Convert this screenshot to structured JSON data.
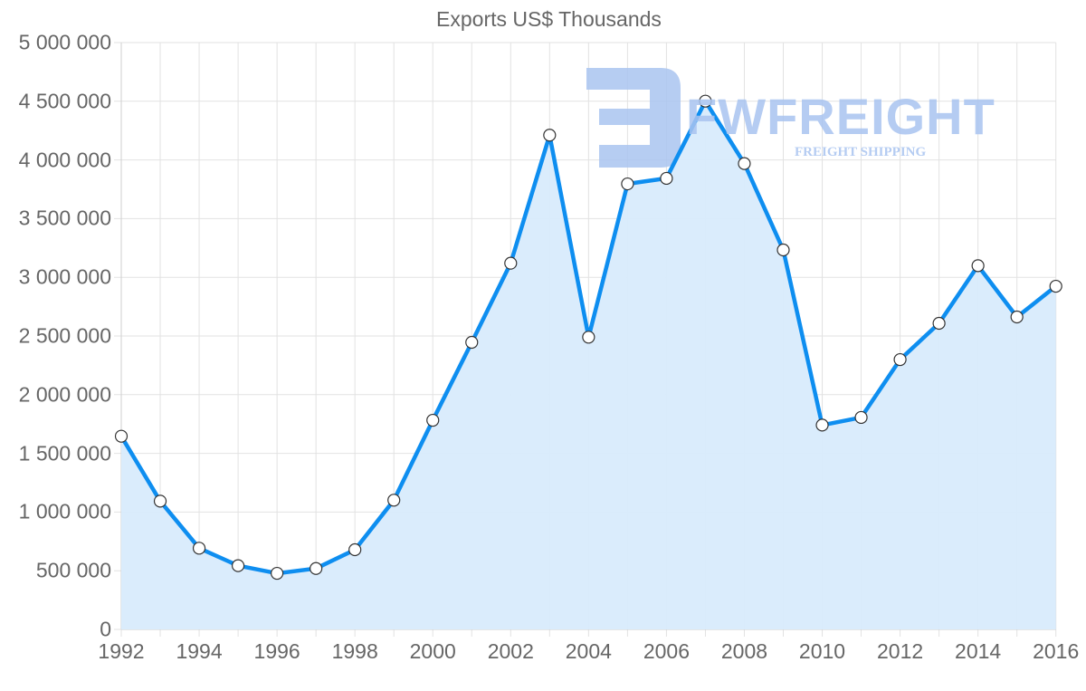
{
  "chart_data": {
    "type": "line",
    "title": "Exports US$ Thousands",
    "xlabel": "",
    "ylabel": "",
    "ylim": [
      0,
      5000000
    ],
    "grid": true,
    "legend": "none",
    "fill": true,
    "x": [
      1992,
      1993,
      1994,
      1995,
      1996,
      1997,
      1998,
      1999,
      2000,
      2001,
      2002,
      2003,
      2004,
      2005,
      2006,
      2007,
      2008,
      2009,
      2010,
      2011,
      2012,
      2013,
      2014,
      2015,
      2016
    ],
    "series": [
      {
        "name": "Exports US$ Thousands",
        "values": [
          1646000,
          1093000,
          692000,
          543000,
          478000,
          519000,
          679000,
          1101000,
          1782000,
          2446000,
          3120000,
          4211000,
          2490000,
          3796000,
          3843000,
          4501000,
          3969000,
          3233000,
          1741000,
          1806000,
          2299000,
          2608000,
          3099000,
          2662000,
          2924000
        ]
      }
    ],
    "yticks": [
      "0",
      "500 000",
      "1 000 000",
      "1 500 000",
      "2 000 000",
      "2 500 000",
      "3 000 000",
      "3 500 000",
      "4 000 000",
      "4 500 000",
      "5 000 000"
    ],
    "xticks": [
      "1992",
      "1994",
      "1996",
      "1998",
      "2000",
      "2002",
      "2004",
      "2006",
      "2008",
      "2010",
      "2012",
      "2014",
      "2016"
    ],
    "colors": {
      "line": "#0e8ef0",
      "fill": "#d8ebfc",
      "grid": "#e2e2e2",
      "text": "#666666",
      "watermark": "#a9c4f0"
    }
  },
  "watermark": {
    "brand": "FWFREIGHT",
    "tagline": "FREIGHT SHIPPING"
  }
}
